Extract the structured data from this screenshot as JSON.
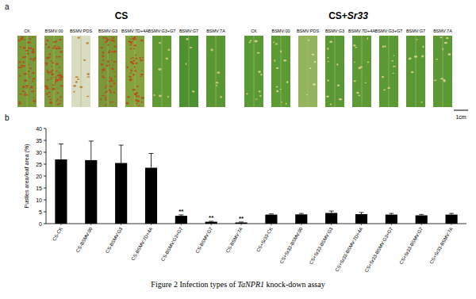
{
  "chart_data": {
    "type": "bar",
    "y_label": "Pustles area/leaf area (%)",
    "categories": [
      "CS-CK",
      "CS-BSMV:00",
      "CS-BSMV:G3",
      "CS-BSMV:7D+4A",
      "CS-BSMV:G3+G7",
      "CS-BSMV:G7",
      "CS-BSMV:7A",
      "CS+Sr33-CK",
      "CS+Sr33-BSMV:00",
      "CS+Sr33-BSMV:G3",
      "CS+Sr33-BSMV:7D+4A",
      "CS+Sr33-BSMV:G3+G7",
      "CS+Sr33-BSMV:G7",
      "CS+Sr33-BSMV:7A"
    ],
    "values": [
      27,
      26.7,
      25.5,
      23.5,
      3.3,
      0.8,
      0.5,
      3.8,
      3.9,
      4.5,
      4.0,
      3.8,
      3.5,
      3.8
    ],
    "errors": [
      6.5,
      8,
      7.5,
      6,
      0.4,
      0.2,
      0.2,
      0.3,
      0.4,
      0.8,
      0.7,
      0.5,
      0.4,
      0.5
    ],
    "annotations": [
      {
        "category": "CS-BSMV:G3+G7",
        "text": "**"
      },
      {
        "category": "CS-BSMV:G7",
        "text": "**"
      },
      {
        "category": "CS-BSMV:7A",
        "text": "**"
      }
    ],
    "color": "#000000",
    "ylim": [
      0,
      40
    ],
    "yticks": [
      0,
      5,
      10,
      15,
      20,
      25,
      30,
      35,
      40
    ],
    "grid": false
  },
  "panel_a": {
    "label": "a",
    "scale_bar": "1cm",
    "groups": [
      {
        "title": [
          "CS"
        ],
        "leaves": [
          "CK",
          "BSMV:00",
          "BSMV:PDS",
          "BSMV:G3",
          "BSMV:7D+4A",
          "BSMV:G3+G7",
          "BSMV:G7",
          "BSMV:7A"
        ]
      },
      {
        "title": [
          "CS+",
          "Sr33"
        ],
        "leaves": [
          "CK",
          "BSMV:00",
          "BSMV:PDS",
          "BSMV:G3",
          "BSMV:7D+4A",
          "BSMV:G3+G7",
          "BSMV:G7",
          "BSMV:7A"
        ]
      }
    ]
  },
  "panel_b": {
    "label": "b"
  },
  "caption": [
    "Figure 2 Infection types of ",
    "TaNPR1",
    " knock-down assay"
  ]
}
